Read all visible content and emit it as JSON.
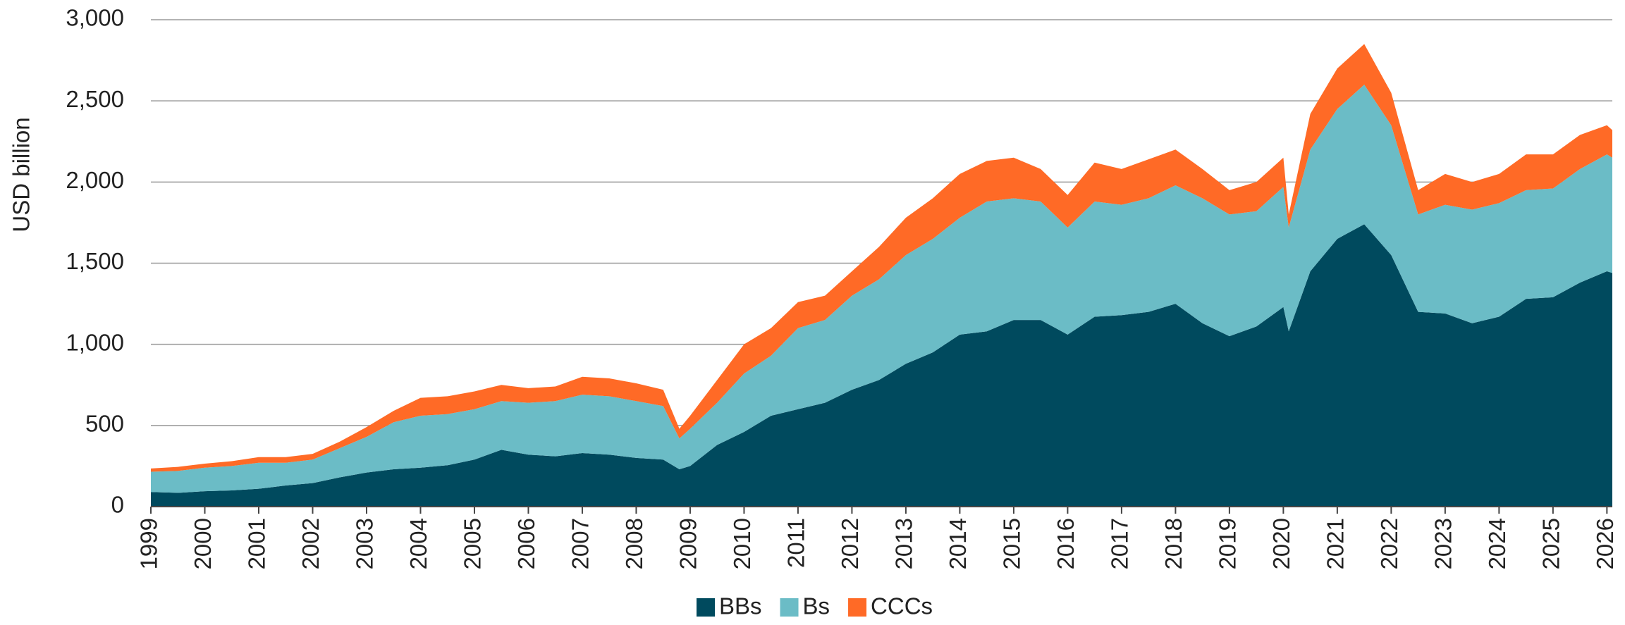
{
  "chart_data": {
    "type": "stacked_area",
    "y_label": "USD billion",
    "x": [
      1999,
      1999.5,
      2000,
      2000.5,
      2001,
      2001.5,
      2002,
      2002.5,
      2003,
      2003.5,
      2004,
      2004.5,
      2005,
      2005.5,
      2006,
      2006.5,
      2007,
      2007.5,
      2008,
      2008.5,
      2008.8,
      2009,
      2009.5,
      2010,
      2010.5,
      2011,
      2011.5,
      2012,
      2012.5,
      2013,
      2013.5,
      2014,
      2014.5,
      2015,
      2015.5,
      2016,
      2016.5,
      2017,
      2017.5,
      2018,
      2018.5,
      2019,
      2019.5,
      2020,
      2020.1,
      2020.5,
      2021,
      2021.5,
      2022,
      2022.5,
      2023,
      2023.5,
      2024,
      2024.5,
      2025,
      2025.5,
      2026,
      2026.1
    ],
    "series": [
      {
        "name": "BBs",
        "color": "#004a5e",
        "values": [
          90,
          85,
          95,
          100,
          110,
          130,
          145,
          180,
          210,
          230,
          240,
          255,
          290,
          350,
          320,
          310,
          330,
          320,
          300,
          290,
          230,
          250,
          380,
          460,
          560,
          600,
          640,
          720,
          780,
          880,
          950,
          1060,
          1080,
          1150,
          1150,
          1060,
          1170,
          1180,
          1200,
          1250,
          1130,
          1050,
          1110,
          1230,
          1080,
          1450,
          1650,
          1740,
          1550,
          1200,
          1190,
          1130,
          1170,
          1280,
          1290,
          1380,
          1450,
          1440
        ]
      },
      {
        "name": "Bs",
        "color": "#6bbcc6",
        "values": [
          125,
          135,
          145,
          150,
          160,
          140,
          145,
          180,
          220,
          290,
          320,
          315,
          310,
          300,
          320,
          340,
          360,
          360,
          350,
          330,
          190,
          230,
          260,
          360,
          370,
          500,
          510,
          580,
          620,
          670,
          700,
          720,
          800,
          750,
          730,
          660,
          710,
          680,
          700,
          730,
          770,
          750,
          710,
          740,
          640,
          750,
          800,
          860,
          800,
          600,
          670,
          700,
          700,
          670,
          670,
          700,
          720,
          710
        ]
      },
      {
        "name": "CCCs",
        "color": "#ff6a26",
        "values": [
          20,
          25,
          25,
          30,
          35,
          35,
          35,
          40,
          60,
          70,
          110,
          110,
          110,
          100,
          90,
          90,
          110,
          110,
          110,
          100,
          60,
          80,
          140,
          180,
          170,
          160,
          150,
          150,
          200,
          230,
          250,
          270,
          250,
          250,
          200,
          200,
          240,
          220,
          240,
          220,
          180,
          150,
          180,
          180,
          80,
          220,
          250,
          250,
          200,
          150,
          190,
          170,
          180,
          220,
          210,
          210,
          180,
          170
        ]
      }
    ],
    "xlim": [
      1999,
      2026.1
    ],
    "xticks": [
      1999,
      2000,
      2001,
      2002,
      2003,
      2004,
      2005,
      2006,
      2007,
      2008,
      2009,
      2010,
      2011,
      2012,
      2013,
      2014,
      2015,
      2016,
      2017,
      2018,
      2019,
      2020,
      2021,
      2022,
      2023,
      2024,
      2025,
      2026
    ],
    "ylim": [
      0,
      3000
    ],
    "yticks": [
      0,
      500,
      {
        "value": 1000,
        "label": "1,000"
      },
      {
        "value": 1500,
        "label": "1,500"
      },
      {
        "value": 2000,
        "label": "2,000"
      },
      {
        "value": 2500,
        "label": "2,500"
      },
      {
        "value": 3000,
        "label": "3,000"
      }
    ],
    "grid": true,
    "legend": "bottom"
  }
}
